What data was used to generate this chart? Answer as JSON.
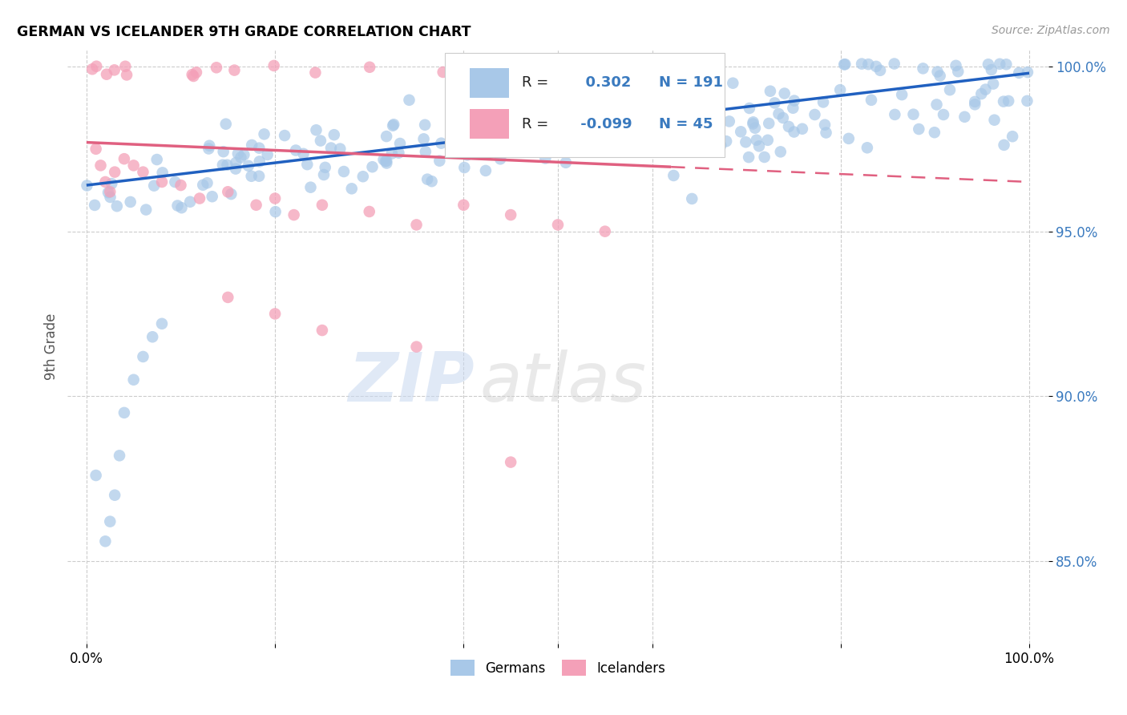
{
  "title": "GERMAN VS ICELANDER 9TH GRADE CORRELATION CHART",
  "source": "Source: ZipAtlas.com",
  "ylabel": "9th Grade",
  "legend_german": "Germans",
  "legend_icelander": "Icelanders",
  "r_german": 0.302,
  "n_german": 191,
  "r_icelander": -0.099,
  "n_icelander": 45,
  "german_color": "#a8c8e8",
  "icelander_color": "#f4a0b8",
  "german_line_color": "#2060c0",
  "icelander_line_color": "#e06080",
  "watermark_zip": "ZIP",
  "watermark_atlas": "atlas",
  "xlim": [
    0.0,
    1.0
  ],
  "ylim": [
    0.825,
    1.005
  ],
  "yticks": [
    0.85,
    0.9,
    0.95,
    1.0
  ],
  "ytick_labels": [
    "85.0%",
    "90.0%",
    "95.0%",
    "100.0%"
  ],
  "grid_color": "#cccccc",
  "grid_style": "--"
}
